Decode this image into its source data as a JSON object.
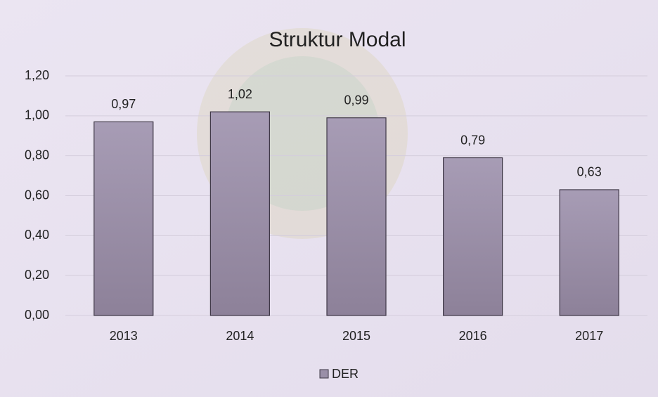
{
  "chart_data": {
    "type": "bar",
    "title": "Struktur Modal",
    "categories": [
      "2013",
      "2014",
      "2015",
      "2016",
      "2017"
    ],
    "series": [
      {
        "name": "DER",
        "color": "#9a8fa8",
        "values": [
          0.97,
          1.02,
          0.99,
          0.79,
          0.63
        ],
        "value_labels": [
          "0,97",
          "1,02",
          "0,99",
          "0,79",
          "0,63"
        ]
      }
    ],
    "ylim": [
      0,
      1.2
    ],
    "yticks": [
      {
        "value": 0,
        "label": "0,00"
      },
      {
        "value": 0.2,
        "label": "0,20"
      },
      {
        "value": 0.4,
        "label": "0,40"
      },
      {
        "value": 0.6,
        "label": "0,60"
      },
      {
        "value": 0.8,
        "label": "0,80"
      },
      {
        "value": 1.0,
        "label": "1,00"
      },
      {
        "value": 1.2,
        "label": "1,20"
      }
    ],
    "grid": true,
    "legend": "bottom"
  }
}
